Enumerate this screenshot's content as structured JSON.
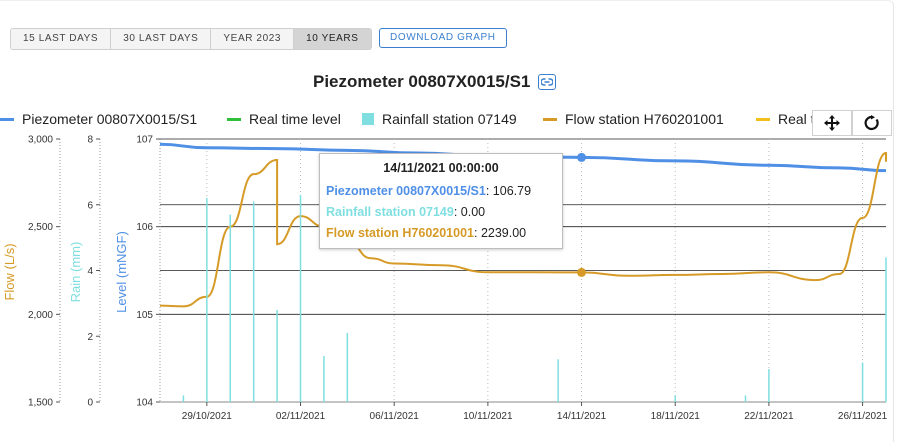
{
  "ranges": [
    "15 LAST DAYS",
    "30 LAST DAYS",
    "YEAR 2023",
    "10 YEARS"
  ],
  "active_range": "10 YEARS",
  "download_label": "DOWNLOAD GRAPH",
  "title": "Piezometer 00807X0015/S1",
  "legend": [
    {
      "label": "Piezometer 00807X0015/S1",
      "color": "#4f8fe6",
      "kind": "line"
    },
    {
      "label": "Real time level",
      "color": "#2fbf3a",
      "kind": "line"
    },
    {
      "label": "Rainfall station 07149",
      "color": "#7fdfe0",
      "kind": "box"
    },
    {
      "label": "Flow station H760201001",
      "color": "#d69a26",
      "kind": "line"
    },
    {
      "label": "Real time flow",
      "color": "#f2c01d",
      "kind": "line"
    }
  ],
  "tools": {
    "pan": "pan-icon",
    "reset": "reset-icon"
  },
  "tooltip": {
    "date": "14/11/2021 00:00:00",
    "rows": [
      {
        "name": "Piezometer 00807X0015/S1",
        "value": "106.79",
        "color": "#4f8fe6"
      },
      {
        "name": "Rainfall station 07149",
        "value": "0.00",
        "color": "#7fdfe0"
      },
      {
        "name": "Flow station H760201001",
        "value": "2239.00",
        "color": "#d69a26"
      }
    ]
  },
  "chart_data": {
    "type": "line",
    "x_start": "27/10/2021",
    "x_end": "27/11/2021",
    "x_tick_labels": [
      "29/10/2021",
      "02/11/2021",
      "06/11/2021",
      "10/11/2021",
      "14/11/2021",
      "18/11/2021",
      "22/11/2021",
      "26/11/2021"
    ],
    "axes": {
      "flow": {
        "label": "Flow (L/s)",
        "range": [
          1500,
          3000
        ],
        "ticks": [
          "1,500",
          "2,000",
          "2,500",
          "3,000"
        ],
        "color": "#d69a26"
      },
      "rain": {
        "label": "Rain (mm)",
        "range": [
          0,
          8
        ],
        "ticks": [
          "0",
          "2",
          "4",
          "6",
          "8"
        ],
        "color": "#7fdfe0"
      },
      "level": {
        "label": "Level (mNGF)",
        "range": [
          104,
          107
        ],
        "ticks": [
          "104",
          "105",
          "106",
          "107"
        ],
        "color": "#4f8fe6"
      }
    },
    "series": [
      {
        "name": "Piezometer 00807X0015/S1",
        "axis": "level",
        "color": "#4f8fe6",
        "points": [
          [
            "27/10/2021",
            106.94
          ],
          [
            "29/10/2021",
            106.9
          ],
          [
            "01/11/2021",
            106.89
          ],
          [
            "04/11/2021",
            106.87
          ],
          [
            "07/11/2021",
            106.84
          ],
          [
            "10/11/2021",
            106.81
          ],
          [
            "14/11/2021",
            106.79
          ],
          [
            "18/11/2021",
            106.75
          ],
          [
            "22/11/2021",
            106.7
          ],
          [
            "25/11/2021",
            106.67
          ],
          [
            "27/11/2021",
            106.64
          ]
        ]
      },
      {
        "name": "Flow station H760201001",
        "axis": "flow",
        "color": "#d69a26",
        "points": [
          [
            "27/10/2021",
            2050
          ],
          [
            "28/10/2021",
            2045
          ],
          [
            "29/10/2021",
            2100
          ],
          [
            "30/10/2021",
            2500
          ],
          [
            "31/10/2021",
            2800
          ],
          [
            "01/11/2021",
            2880
          ],
          [
            "01/11/2021",
            2400
          ],
          [
            "02/11/2021",
            2560
          ],
          [
            "03/11/2021",
            2500
          ],
          [
            "04/11/2021",
            2420
          ],
          [
            "05/11/2021",
            2320
          ],
          [
            "06/11/2021",
            2290
          ],
          [
            "08/11/2021",
            2280
          ],
          [
            "10/11/2021",
            2240
          ],
          [
            "12/11/2021",
            2240
          ],
          [
            "14/11/2021",
            2239
          ],
          [
            "16/11/2021",
            2220
          ],
          [
            "18/11/2021",
            2225
          ],
          [
            "20/11/2021",
            2230
          ],
          [
            "22/11/2021",
            2240
          ],
          [
            "24/11/2021",
            2195
          ],
          [
            "25/11/2021",
            2230
          ],
          [
            "26/11/2021",
            2550
          ],
          [
            "27/11/2021",
            2920
          ],
          [
            "27/11/2021",
            2870
          ]
        ]
      },
      {
        "name": "Rainfall station 07149",
        "axis": "rain",
        "color": "#7fdfe0",
        "type": "bar",
        "points": [
          [
            "28/10/2021",
            0.2
          ],
          [
            "29/10/2021",
            6.2
          ],
          [
            "30/10/2021",
            5.7
          ],
          [
            "31/10/2021",
            6.1
          ],
          [
            "01/11/2021",
            2.8
          ],
          [
            "02/11/2021",
            6.3
          ],
          [
            "03/11/2021",
            1.4
          ],
          [
            "04/11/2021",
            2.1
          ],
          [
            "13/11/2021",
            1.3
          ],
          [
            "18/11/2021",
            0.2
          ],
          [
            "21/11/2021",
            0.2
          ],
          [
            "22/11/2021",
            1.0
          ],
          [
            "26/11/2021",
            1.2
          ],
          [
            "27/11/2021",
            4.4
          ]
        ]
      }
    ]
  }
}
